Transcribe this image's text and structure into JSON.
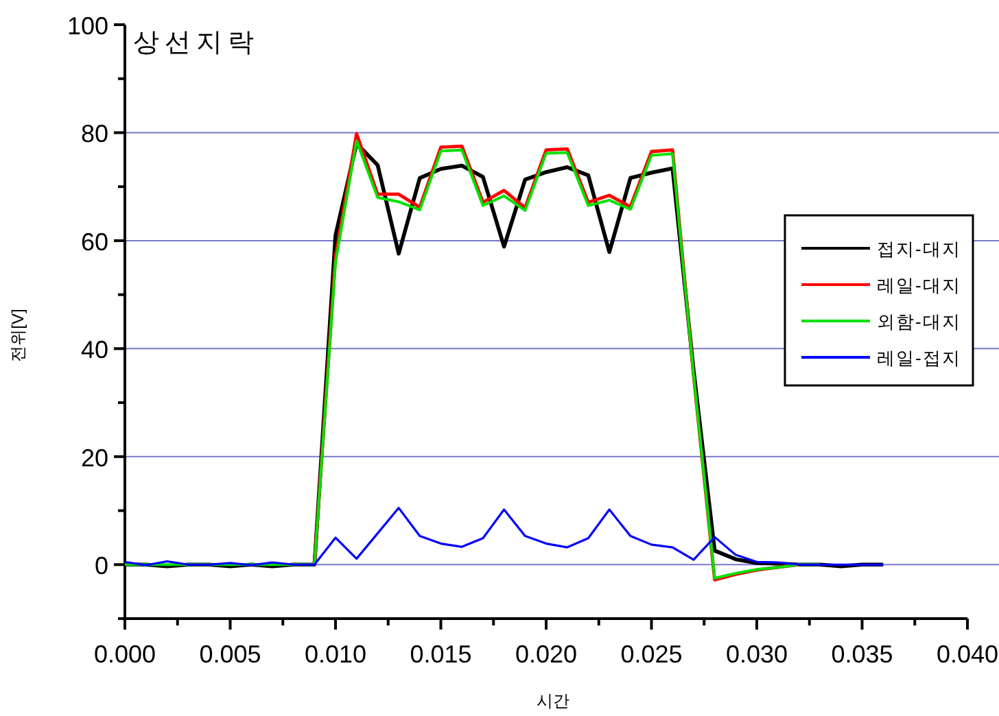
{
  "chart_data": {
    "type": "line",
    "title": "상선지락",
    "xlabel": "시간",
    "ylabel": "전위[V]",
    "x": [
      0,
      0.001,
      0.002,
      0.003,
      0.004,
      0.005,
      0.006,
      0.007,
      0.008,
      0.009,
      0.01,
      0.011,
      0.012,
      0.013,
      0.014,
      0.015,
      0.016,
      0.017,
      0.018,
      0.019,
      0.02,
      0.021,
      0.022,
      0.023,
      0.024,
      0.025,
      0.026,
      0.027,
      0.028,
      0.029,
      0.03,
      0.031,
      0.032,
      0.033,
      0.034,
      0.035,
      0.036
    ],
    "series": [
      {
        "name": "접지-대지",
        "color": "#000000",
        "values": [
          0,
          0,
          -0.3,
          0,
          0,
          -0.3,
          0,
          -0.3,
          0,
          0,
          61,
          78,
          74,
          57.6,
          71.6,
          73.3,
          73.9,
          71.8,
          58.9,
          71.3,
          72.7,
          73.6,
          72.1,
          57.9,
          71.6,
          72.6,
          73.4,
          36,
          2.6,
          1,
          0.3,
          0.2,
          0,
          0,
          -0.3,
          0,
          0
        ]
      },
      {
        "name": "레일-대지",
        "color": "#ff0000",
        "values": [
          null,
          null,
          null,
          null,
          null,
          null,
          null,
          null,
          null,
          0,
          57,
          79.8,
          68.6,
          68.6,
          66.2,
          77.3,
          77.5,
          67.1,
          69.3,
          66.1,
          76.8,
          77,
          67.1,
          68.4,
          66.3,
          76.5,
          76.8,
          35,
          -2.8,
          -1.8,
          -1,
          -0.5,
          0,
          null,
          null,
          null,
          null
        ]
      },
      {
        "name": "외함-대지",
        "color": "#00e000",
        "values": [
          0,
          0,
          0,
          0,
          0,
          0,
          0,
          0,
          0,
          0,
          56,
          78.5,
          68,
          67.2,
          65.7,
          76.6,
          76.8,
          66.5,
          68.3,
          65.6,
          76.2,
          76.3,
          66.5,
          67.5,
          65.8,
          75.8,
          76.1,
          35,
          -2.5,
          -1.6,
          -0.9,
          -0.5,
          0,
          0,
          null,
          null,
          null
        ]
      },
      {
        "name": "레일-접지",
        "color": "#0000ff",
        "values": [
          0.5,
          -0.1,
          0.6,
          0,
          0,
          0.3,
          -0.1,
          0.4,
          0,
          0,
          5,
          1.1,
          5.8,
          10.5,
          5.3,
          3.9,
          3.3,
          4.9,
          10.2,
          5.3,
          3.9,
          3.2,
          4.9,
          10.2,
          5.3,
          3.7,
          3.2,
          0.9,
          5.1,
          1.8,
          0.5,
          0.4,
          0,
          0,
          0,
          0,
          0
        ]
      }
    ],
    "xlim": [
      0,
      0.04
    ],
    "xticks": [
      {
        "value": 0,
        "label": "0.000"
      },
      {
        "value": 0.005,
        "label": "0.005"
      },
      {
        "value": 0.01,
        "label": "0.010"
      },
      {
        "value": 0.015,
        "label": "0.015"
      },
      {
        "value": 0.02,
        "label": "0.020"
      },
      {
        "value": 0.025,
        "label": "0.025"
      },
      {
        "value": 0.03,
        "label": "0.030"
      },
      {
        "value": 0.035,
        "label": "0.035"
      },
      {
        "value": 0.04,
        "label": "0.040"
      }
    ],
    "ylim": [
      -10,
      100
    ],
    "yticks": [
      0,
      20,
      40,
      60,
      80,
      100
    ],
    "grid": "y",
    "legend": "right",
    "marker": "none",
    "line_style": "solid"
  }
}
